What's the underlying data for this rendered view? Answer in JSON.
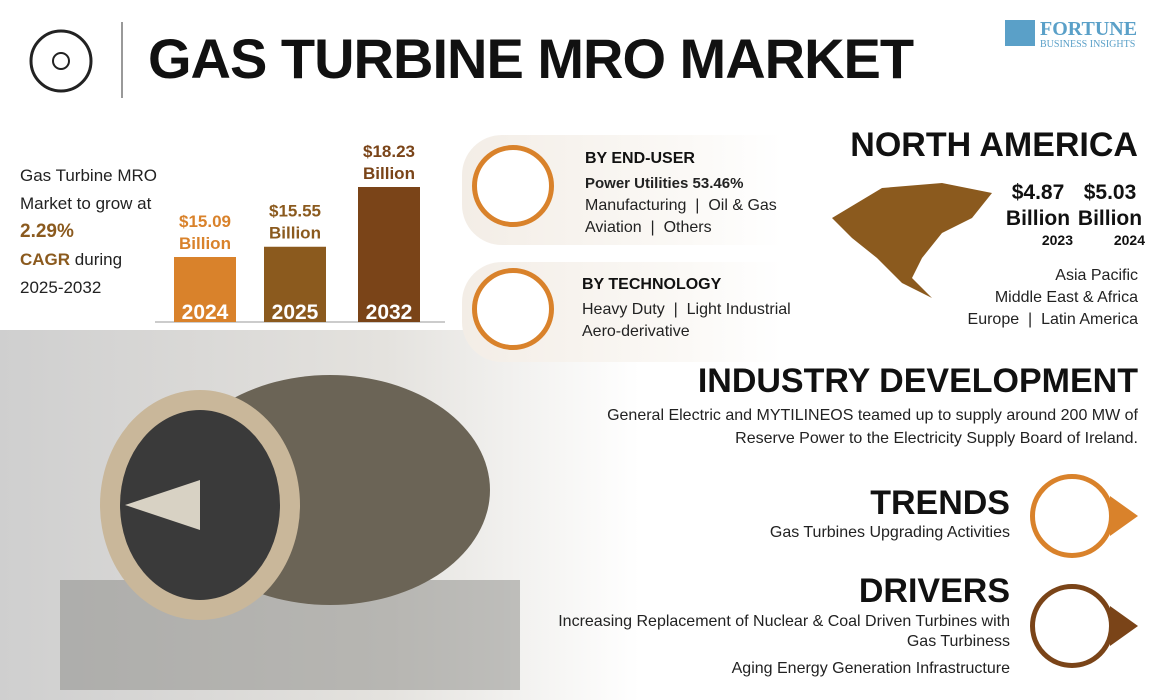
{
  "header": {
    "title": "GAS TURBINE MRO MARKET",
    "logo_main": "FORTUNE",
    "logo_sub": "BUSINESS INSIGHTS"
  },
  "growth": {
    "text": "Gas Turbine MRO Market to grow at",
    "rate": "2.29%",
    "cagr": "CAGR",
    "during": "during",
    "period": "2025-2032"
  },
  "chart_data": {
    "type": "bar",
    "categories": [
      "2024",
      "2025",
      "2032"
    ],
    "values": [
      15.09,
      15.55,
      18.23
    ],
    "value_labels": [
      "$15.09 Billion",
      "$15.55 Billion",
      "$18.23 Billion"
    ],
    "colors": [
      "#d9822b",
      "#8b5a1e",
      "#7a4418"
    ]
  },
  "segments": [
    {
      "title": "BY END-USER",
      "lines": [
        "Power Utilities 53.46%",
        "Manufacturing  |  Oil & Gas",
        "Aviation  |  Others"
      ]
    },
    {
      "title": "BY TECHNOLOGY",
      "lines": [
        "Heavy Duty  |  Light Industrial",
        "Aero-derivative"
      ]
    }
  ],
  "north_america": {
    "title": "NORTH AMERICA",
    "figures": [
      {
        "value": "$4.87 Billion",
        "year": "2023"
      },
      {
        "value": "$5.03 Billion",
        "year": "2024"
      }
    ],
    "regions": [
      "Asia Pacific",
      "Middle East & Africa",
      "Europe  |  Latin America"
    ]
  },
  "industry_development": {
    "title": "INDUSTRY DEVELOPMENT",
    "text": "General Electric and MYTILINEOS teamed up to supply around 200 MW of Reserve Power to the Electricity Supply Board of Ireland."
  },
  "trends": {
    "title": "TRENDS",
    "items": [
      "Gas Turbines Upgrading Activities"
    ]
  },
  "drivers": {
    "title": "DRIVERS",
    "items": [
      "Increasing Replacement of Nuclear & Coal Driven Turbines with Gas Turbiness",
      "Aging Energy Generation Infrastructure"
    ]
  }
}
